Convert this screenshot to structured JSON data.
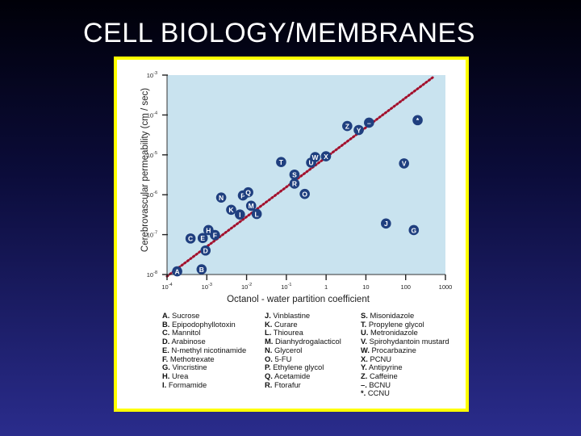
{
  "slide": {
    "title": "CELL BIOLOGY/MEMBRANES"
  },
  "colors": {
    "frame": "#ffff00",
    "plot_bg": "#c9e3ef",
    "marker": "#1f3f7f",
    "fit_line": "#a3102c"
  },
  "chart_data": {
    "type": "scatter",
    "xlabel": "Octanol - water partition coefficient",
    "ylabel": "Cerebrovascular permeability (cm / sec)",
    "xscale": "log",
    "yscale": "log",
    "xlim": [
      0.0001,
      1000
    ],
    "ylim": [
      1e-08,
      0.001
    ],
    "x_ticks": [
      {
        "label": "10",
        "exp": "-4"
      },
      {
        "label": "10",
        "exp": "-3"
      },
      {
        "label": "10",
        "exp": "-2"
      },
      {
        "label": "10",
        "exp": "-1"
      },
      {
        "label": "1",
        "exp": ""
      },
      {
        "label": "10",
        "exp": ""
      },
      {
        "label": "100",
        "exp": ""
      },
      {
        "label": "1000",
        "exp": ""
      }
    ],
    "y_ticks": [
      {
        "label": "10",
        "exp": "-3"
      },
      {
        "label": "10",
        "exp": "-4"
      },
      {
        "label": "10",
        "exp": "-5"
      },
      {
        "label": "10",
        "exp": "-6"
      },
      {
        "label": "10",
        "exp": "-7"
      },
      {
        "label": "10",
        "exp": "-8"
      }
    ],
    "fit_line": {
      "x": [
        0.0001,
        500
      ],
      "y": [
        9e-09,
        0.0009
      ],
      "style": "dotted"
    },
    "points": [
      {
        "label": "A",
        "x": 0.00018,
        "y": 1.2e-08
      },
      {
        "label": "B",
        "x": 0.00074,
        "y": 1.35e-08
      },
      {
        "label": "C",
        "x": 0.00039,
        "y": 8e-08
      },
      {
        "label": "D",
        "x": 0.00093,
        "y": 4e-08
      },
      {
        "label": "E",
        "x": 0.00079,
        "y": 8.2e-08
      },
      {
        "label": "F",
        "x": 0.0016,
        "y": 9.8e-08
      },
      {
        "label": "G",
        "x": 160,
        "y": 1.3e-07
      },
      {
        "label": "H",
        "x": 0.0011,
        "y": 1.3e-07
      },
      {
        "label": "I",
        "x": 0.0068,
        "y": 3.2e-07
      },
      {
        "label": "J",
        "x": 32,
        "y": 1.9e-07
      },
      {
        "label": "K",
        "x": 0.0041,
        "y": 4.2e-07
      },
      {
        "label": "L",
        "x": 0.018,
        "y": 3.3e-07
      },
      {
        "label": "M",
        "x": 0.013,
        "y": 5.3e-07
      },
      {
        "label": "N",
        "x": 0.0023,
        "y": 8.5e-07
      },
      {
        "label": "O",
        "x": 0.29,
        "y": 1.05e-06
      },
      {
        "label": "P",
        "x": 0.0081,
        "y": 9.6e-07
      },
      {
        "label": "Q",
        "x": 0.011,
        "y": 1.15e-06
      },
      {
        "label": "R",
        "x": 0.16,
        "y": 1.9e-06
      },
      {
        "label": "S",
        "x": 0.16,
        "y": 3.2e-06
      },
      {
        "label": "T",
        "x": 0.074,
        "y": 6.6e-06
      },
      {
        "label": "U",
        "x": 0.42,
        "y": 6.4e-06
      },
      {
        "label": "V",
        "x": 91,
        "y": 6.1e-06
      },
      {
        "label": "W",
        "x": 0.53,
        "y": 8.8e-06
      },
      {
        "label": "X",
        "x": 0.99,
        "y": 9.2e-06
      },
      {
        "label": "Y",
        "x": 6.6,
        "y": 4.2e-05
      },
      {
        "label": "Z",
        "x": 3.4,
        "y": 5.3e-05
      },
      {
        "label": "–",
        "x": 12,
        "y": 6.4e-05
      },
      {
        "label": "*",
        "x": 200,
        "y": 7.4e-05
      }
    ]
  },
  "legend": {
    "col1": [
      {
        "key": "A.",
        "name": "Sucrose"
      },
      {
        "key": "B.",
        "name": "Epipodophyllotoxin"
      },
      {
        "key": "C.",
        "name": "Mannitol"
      },
      {
        "key": "D.",
        "name": "Arabinose"
      },
      {
        "key": "E.",
        "name": "N-methyl nicotinamide"
      },
      {
        "key": "F.",
        "name": "Methotrexate"
      },
      {
        "key": "G.",
        "name": "Vincristine"
      },
      {
        "key": "H.",
        "name": "Urea"
      },
      {
        "key": "I.",
        "name": "Formamide"
      }
    ],
    "col2": [
      {
        "key": "J.",
        "name": "Vinblastine"
      },
      {
        "key": "K.",
        "name": "Curare"
      },
      {
        "key": "L.",
        "name": "Thiourea"
      },
      {
        "key": "M.",
        "name": "Dianhydrogalacticol"
      },
      {
        "key": "N.",
        "name": "Glycerol"
      },
      {
        "key": "O.",
        "name": "5-FU"
      },
      {
        "key": "P.",
        "name": "Ethylene glycol"
      },
      {
        "key": "Q.",
        "name": "Acetamide"
      },
      {
        "key": "R.",
        "name": "Ftorafur"
      }
    ],
    "col3": [
      {
        "key": "S.",
        "name": "Misonidazole"
      },
      {
        "key": "T.",
        "name": "Propylene glycol"
      },
      {
        "key": "U.",
        "name": "Metronidazole"
      },
      {
        "key": "V.",
        "name": "Spirohydantoin mustard"
      },
      {
        "key": "W.",
        "name": "Procarbazine"
      },
      {
        "key": "X.",
        "name": "PCNU"
      },
      {
        "key": "Y.",
        "name": "Antipyrine"
      },
      {
        "key": "Z.",
        "name": "Caffeine"
      },
      {
        "key": "–.",
        "name": "BCNU"
      },
      {
        "key": "*.",
        "name": "CCNU"
      }
    ]
  }
}
